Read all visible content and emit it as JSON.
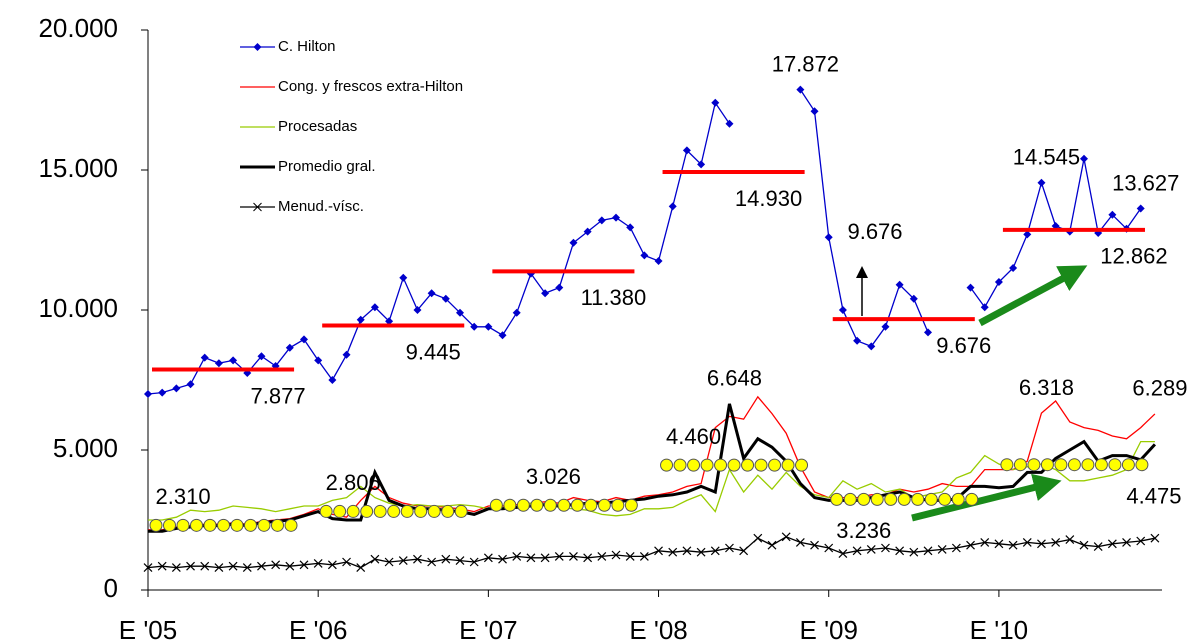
{
  "chart_data": {
    "type": "line",
    "categories": [
      "E '05",
      null,
      null,
      null,
      null,
      null,
      null,
      null,
      null,
      null,
      null,
      null,
      "E '06",
      null,
      null,
      null,
      null,
      null,
      null,
      null,
      null,
      null,
      null,
      null,
      "E '07",
      null,
      null,
      null,
      null,
      null,
      null,
      null,
      null,
      null,
      null,
      null,
      "E '08",
      null,
      null,
      null,
      null,
      null,
      null,
      null,
      null,
      null,
      null,
      null,
      "E '09",
      null,
      null,
      null,
      null,
      null,
      null,
      null,
      null,
      null,
      null,
      null,
      "E '10",
      null,
      null,
      null,
      null,
      null,
      null,
      null,
      null,
      null,
      null,
      null
    ],
    "ylim": [
      0,
      20000
    ],
    "yticks": [
      0,
      {
        "value": 5000,
        "label": "5.000"
      },
      {
        "value": 10000,
        "label": "10.000"
      },
      {
        "value": 15000,
        "label": "15.000"
      },
      {
        "value": 20000,
        "label": "20.000"
      }
    ],
    "series": [
      {
        "name": "C. Hilton",
        "color": "#0000cc",
        "marker": "diamond",
        "values": [
          7000,
          7050,
          7200,
          7350,
          8300,
          8100,
          8200,
          7750,
          8350,
          8000,
          8650,
          8950,
          8200,
          7500,
          8400,
          9650,
          10100,
          9600,
          11150,
          10000,
          10600,
          10400,
          9900,
          9400,
          9400,
          9100,
          9900,
          11300,
          10600,
          10800,
          12400,
          12800,
          13200,
          13300,
          12950,
          11950,
          11750,
          13700,
          15700,
          15200,
          17400,
          16650,
          null,
          null,
          null,
          null,
          17872,
          17100,
          12600,
          10000,
          8900,
          8700,
          9400,
          10900,
          10400,
          9200,
          null,
          null,
          10800,
          10100,
          11000,
          11500,
          12700,
          14545,
          13000,
          12800,
          15400,
          12750,
          13400,
          12900,
          13627,
          null
        ],
        "value_labels": [
          null,
          null,
          null,
          null,
          null,
          null,
          null,
          null,
          null,
          null,
          null,
          null,
          null,
          null,
          null,
          null,
          null,
          null,
          null,
          null,
          null,
          null,
          null,
          null,
          null,
          null,
          null,
          null,
          null,
          null,
          null,
          null,
          null,
          null,
          null,
          null,
          null,
          null,
          null,
          null,
          null,
          null,
          null,
          null,
          null,
          null,
          "17.872",
          null,
          null,
          null,
          null,
          null,
          null,
          null,
          null,
          null,
          null,
          null,
          null,
          null,
          null,
          null,
          null,
          "14.545",
          null,
          null,
          null,
          null,
          null,
          null,
          "13.627",
          null
        ]
      },
      {
        "name": "Cong. y frescos extra-Hilton",
        "color": "#ff0000",
        "values": [
          2150,
          2150,
          2250,
          2300,
          2350,
          2350,
          2400,
          2350,
          2450,
          2500,
          2550,
          2700,
          2900,
          2700,
          2600,
          3200,
          3700,
          3300,
          3100,
          3000,
          3000,
          2950,
          2900,
          2800,
          3000,
          3000,
          3050,
          3100,
          3150,
          3100,
          3300,
          3200,
          3150,
          3300,
          3200,
          3350,
          3400,
          3500,
          3700,
          3800,
          5800,
          6200,
          6100,
          6900,
          6300,
          5600,
          4400,
          3500,
          3300,
          3300,
          3300,
          3400,
          3400,
          3600,
          3500,
          3600,
          3800,
          3700,
          3700,
          4300,
          4300,
          4300,
          4600,
          6318,
          6750,
          6000,
          5800,
          5700,
          5500,
          5400,
          5800,
          6289
        ],
        "value_labels": [
          null,
          null,
          null,
          null,
          null,
          null,
          null,
          null,
          null,
          null,
          null,
          null,
          null,
          null,
          null,
          null,
          null,
          null,
          null,
          null,
          null,
          null,
          null,
          null,
          null,
          null,
          null,
          null,
          null,
          null,
          null,
          null,
          null,
          null,
          null,
          null,
          null,
          null,
          null,
          null,
          null,
          null,
          null,
          null,
          null,
          null,
          null,
          null,
          null,
          null,
          null,
          null,
          null,
          null,
          null,
          null,
          null,
          null,
          null,
          null,
          null,
          null,
          null,
          "6.318",
          null,
          null,
          null,
          null,
          null,
          null,
          null,
          "6.289"
        ]
      },
      {
        "name": "Procesadas",
        "color": "#99cc00",
        "values": [
          2500,
          2500,
          2600,
          2850,
          2800,
          2850,
          3000,
          2950,
          2900,
          2800,
          2900,
          3000,
          3000,
          3200,
          3300,
          3700,
          3300,
          3100,
          3000,
          3050,
          3000,
          3000,
          3050,
          3000,
          2900,
          2950,
          3000,
          3100,
          3050,
          2950,
          2900,
          2850,
          2700,
          2650,
          2700,
          2900,
          2900,
          2950,
          3200,
          3400,
          2800,
          4300,
          3500,
          4100,
          3600,
          4200,
          3700,
          3400,
          3300,
          3900,
          3600,
          3800,
          3500,
          3600,
          3300,
          3400,
          3500,
          4000,
          4200,
          4800,
          4500,
          4300,
          4400,
          4500,
          4300,
          3900,
          3900,
          4000,
          4100,
          4300,
          5300,
          5300
        ]
      },
      {
        "name": "Promedio gral.",
        "color": "#000000",
        "width": 3,
        "values": [
          2100,
          2100,
          2200,
          2250,
          2300,
          2300,
          2350,
          2300,
          2400,
          2450,
          2500,
          2650,
          2800,
          2550,
          2500,
          2500,
          4200,
          3200,
          3000,
          2900,
          2900,
          2850,
          2800,
          2700,
          2900,
          2900,
          2950,
          3000,
          3050,
          3000,
          3050,
          3100,
          3100,
          3150,
          3200,
          3250,
          3350,
          3400,
          3500,
          3700,
          3500,
          6648,
          4700,
          5400,
          5100,
          4600,
          3800,
          3300,
          3200,
          3200,
          3200,
          3300,
          3400,
          3500,
          3300,
          3200,
          3200,
          3250,
          3700,
          3700,
          3650,
          3700,
          4200,
          4200,
          4700,
          5000,
          5300,
          4600,
          4800,
          4800,
          4650,
          5200
        ],
        "value_labels": [
          null,
          null,
          null,
          null,
          null,
          null,
          null,
          null,
          null,
          null,
          null,
          null,
          null,
          null,
          null,
          null,
          null,
          null,
          null,
          null,
          null,
          null,
          null,
          null,
          null,
          null,
          null,
          null,
          null,
          null,
          null,
          null,
          null,
          null,
          null,
          null,
          null,
          null,
          null,
          null,
          null,
          "6.648",
          null,
          null,
          null,
          null,
          null,
          null,
          null,
          null,
          null,
          null,
          null,
          null,
          null,
          null,
          null,
          null,
          null,
          null,
          null,
          null,
          null,
          null,
          null,
          null,
          null,
          null,
          null,
          null,
          null,
          null
        ]
      },
      {
        "name": "Menud.-vísc.",
        "color": "#000000",
        "marker": "x",
        "values": [
          800,
          850,
          800,
          850,
          850,
          800,
          850,
          800,
          850,
          900,
          850,
          900,
          950,
          900,
          1000,
          800,
          1100,
          1000,
          1050,
          1100,
          1000,
          1100,
          1050,
          1000,
          1150,
          1100,
          1200,
          1150,
          1150,
          1200,
          1200,
          1150,
          1200,
          1250,
          1200,
          1200,
          1400,
          1350,
          1400,
          1350,
          1400,
          1500,
          1400,
          1850,
          1600,
          1900,
          1700,
          1600,
          1500,
          1300,
          1400,
          1450,
          1500,
          1400,
          1350,
          1400,
          1450,
          1500,
          1600,
          1700,
          1650,
          1600,
          1700,
          1650,
          1700,
          1800,
          1600,
          1550,
          1650,
          1700,
          1750,
          1850
        ]
      }
    ],
    "annual_averages": [
      {
        "color": "#ff0000",
        "style": "bar",
        "values": [
          7877,
          9445,
          11380,
          14930,
          9676,
          12862
        ],
        "value_labels": [
          "7.877",
          "9.445",
          "11.380",
          "14.930",
          "9.676",
          "12.862"
        ]
      },
      {
        "color": "#ffff00",
        "style": "dots",
        "values": [
          2310,
          2806,
          3026,
          4460,
          3236,
          4475
        ],
        "value_labels": [
          "2.310",
          "2.806",
          "3.026",
          "4.460",
          "3.236",
          "4.475"
        ]
      }
    ],
    "annotation": "9.676",
    "legend": "top-left"
  }
}
